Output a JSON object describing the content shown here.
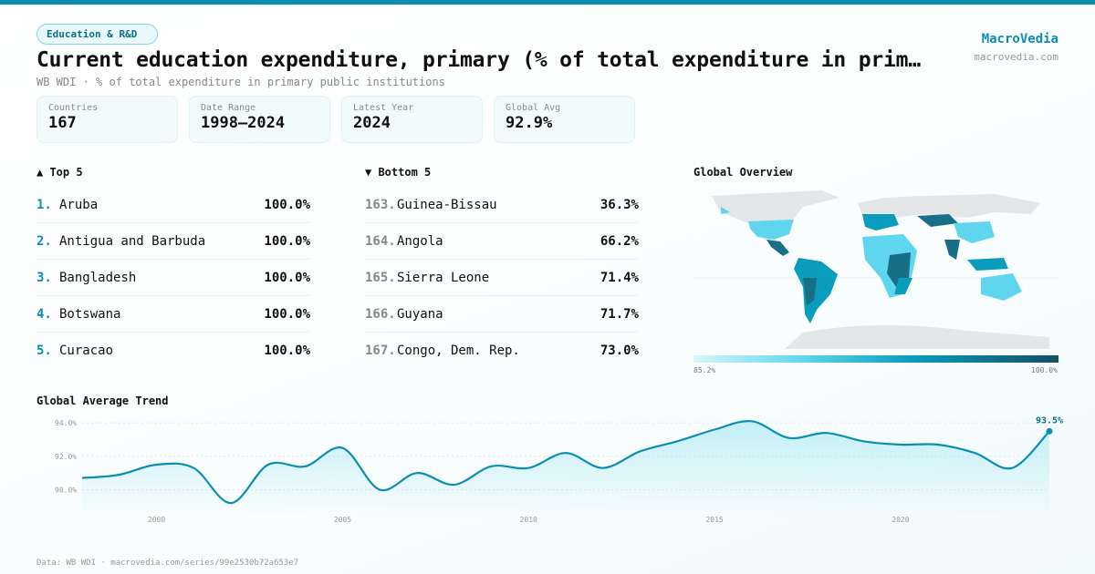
{
  "header": {
    "category": "Education & R&D",
    "title": "Current education expenditure, primary (% of total expenditure in primary public institutions)",
    "subtitle": "WB WDI · % of total expenditure in primary public institutions",
    "brand": "MacroVedia",
    "brand_url": "macrovedia.com"
  },
  "stats": [
    {
      "label": "Countries",
      "value": "167"
    },
    {
      "label": "Date Range",
      "value": "1998–2024"
    },
    {
      "label": "Latest Year",
      "value": "2024"
    },
    {
      "label": "Global Avg",
      "value": "92.9%"
    }
  ],
  "top": {
    "title": "▲ Top 5",
    "items": [
      {
        "rank": "1.",
        "name": "Aruba",
        "value": "100.0%"
      },
      {
        "rank": "2.",
        "name": "Antigua and Barbuda",
        "value": "100.0%"
      },
      {
        "rank": "3.",
        "name": "Bangladesh",
        "value": "100.0%"
      },
      {
        "rank": "4.",
        "name": "Botswana",
        "value": "100.0%"
      },
      {
        "rank": "5.",
        "name": "Curacao",
        "value": "100.0%"
      }
    ]
  },
  "bottom": {
    "title": "▼ Bottom 5",
    "items": [
      {
        "rank": "163.",
        "name": "Guinea-Bissau",
        "value": "36.3%"
      },
      {
        "rank": "164.",
        "name": "Angola",
        "value": "66.2%"
      },
      {
        "rank": "165.",
        "name": "Sierra Leone",
        "value": "71.4%"
      },
      {
        "rank": "166.",
        "name": "Guyana",
        "value": "71.7%"
      },
      {
        "rank": "167.",
        "name": "Congo, Dem. Rep.",
        "value": "73.0%"
      }
    ]
  },
  "map": {
    "title": "Global Overview",
    "legend_min": "85.2%",
    "legend_max": "100.0%"
  },
  "chart_data": {
    "type": "area",
    "title": "Global Average Trend",
    "x": [
      1998,
      1999,
      2000,
      2001,
      2002,
      2003,
      2004,
      2005,
      2006,
      2007,
      2008,
      2009,
      2010,
      2011,
      2012,
      2013,
      2014,
      2015,
      2016,
      2017,
      2018,
      2019,
      2020,
      2021,
      2022,
      2023,
      2024
    ],
    "values": [
      90.7,
      90.9,
      91.5,
      91.3,
      89.2,
      91.5,
      91.4,
      92.5,
      90.0,
      91.0,
      90.3,
      91.4,
      91.3,
      92.2,
      91.3,
      92.3,
      92.9,
      93.6,
      94.1,
      93.1,
      93.4,
      92.9,
      92.7,
      92.7,
      92.2,
      91.3,
      93.5
    ],
    "ylim": [
      88.5,
      94.5
    ],
    "yticks": [
      "90.0%",
      "92.0%",
      "94.0%"
    ],
    "ytick_values": [
      90,
      92,
      94
    ],
    "xticks": [
      "2000",
      "2005",
      "2010",
      "2015",
      "2020"
    ],
    "xtick_values": [
      2000,
      2005,
      2010,
      2015,
      2020
    ],
    "last_label": "93.5%",
    "color": "#0a8fb0"
  },
  "footer": "Data: WB WDI · macrovedia.com/series/99e2530b72a653e7"
}
